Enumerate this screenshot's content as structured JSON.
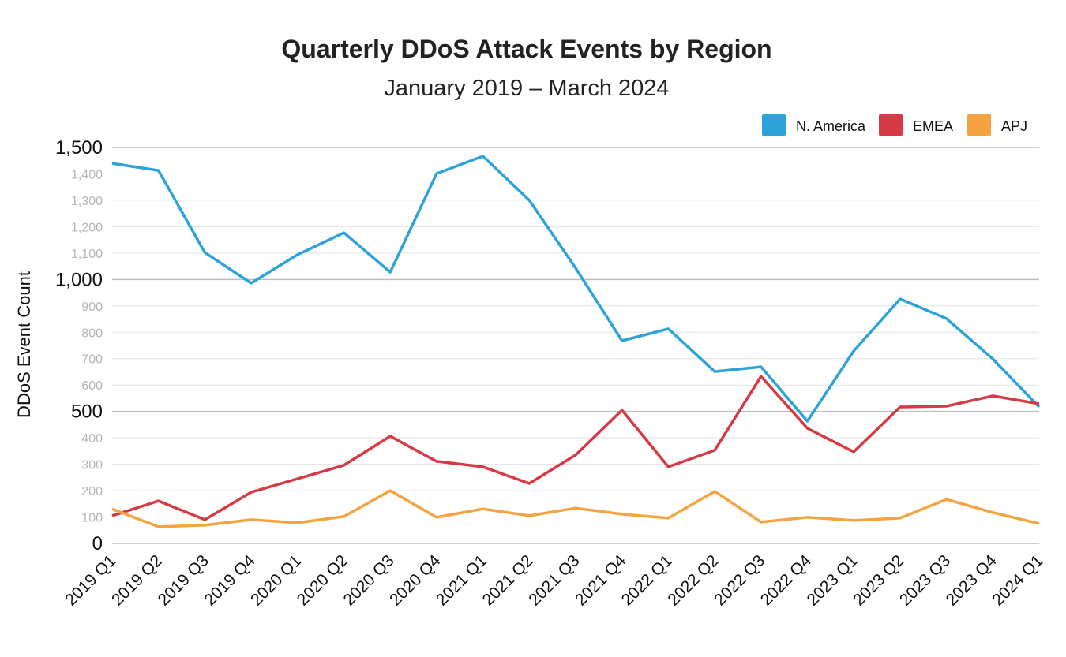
{
  "chart_data": {
    "type": "line",
    "title": "Quarterly DDoS Attack Events by Region",
    "subtitle": "January 2019 – March 2024",
    "xlabel": "",
    "ylabel": "DDoS Event Count",
    "ylim": [
      0,
      1500
    ],
    "yticks": [
      0,
      100,
      200,
      300,
      400,
      500,
      600,
      700,
      800,
      900,
      1000,
      1100,
      1200,
      1300,
      1400,
      1500
    ],
    "ytick_labels": [
      "0",
      "100",
      "200",
      "300",
      "400",
      "500",
      "600",
      "700",
      "800",
      "900",
      "1,000",
      "1,100",
      "1,200",
      "1,300",
      "1,400",
      "1,500"
    ],
    "major_ticks": [
      0,
      500,
      1000,
      1500
    ],
    "grid": true,
    "legend_placement": "top-right",
    "categories": [
      "2019 Q1",
      "2019 Q2",
      "2019 Q3",
      "2019 Q4",
      "2020 Q1",
      "2020 Q2",
      "2020 Q3",
      "2020 Q4",
      "2021 Q1",
      "2021 Q2",
      "2021 Q3",
      "2021 Q4",
      "2022 Q1",
      "2022 Q2",
      "2022 Q3",
      "2022 Q4",
      "2023 Q1",
      "2023 Q2",
      "2023 Q3",
      "2023 Q4",
      "2024 Q1"
    ],
    "series": [
      {
        "name": "N. America",
        "color": "#2ea3d9",
        "values": [
          1440,
          1413,
          1102,
          986,
          1094,
          1177,
          1028,
          1401,
          1467,
          1300,
          1043,
          768,
          813,
          651,
          669,
          463,
          729,
          926,
          852,
          699,
          517
        ]
      },
      {
        "name": "EMEA",
        "color": "#d63a45",
        "values": [
          105,
          161,
          90,
          194,
          245,
          296,
          406,
          311,
          290,
          227,
          335,
          505,
          290,
          353,
          633,
          436,
          347,
          517,
          520,
          559,
          529
        ]
      },
      {
        "name": "APJ",
        "color": "#f4a340",
        "values": [
          131,
          63,
          69,
          90,
          78,
          102,
          200,
          99,
          131,
          105,
          134,
          111,
          96,
          197,
          81,
          99,
          87,
          96,
          167,
          117,
          75
        ]
      }
    ]
  }
}
